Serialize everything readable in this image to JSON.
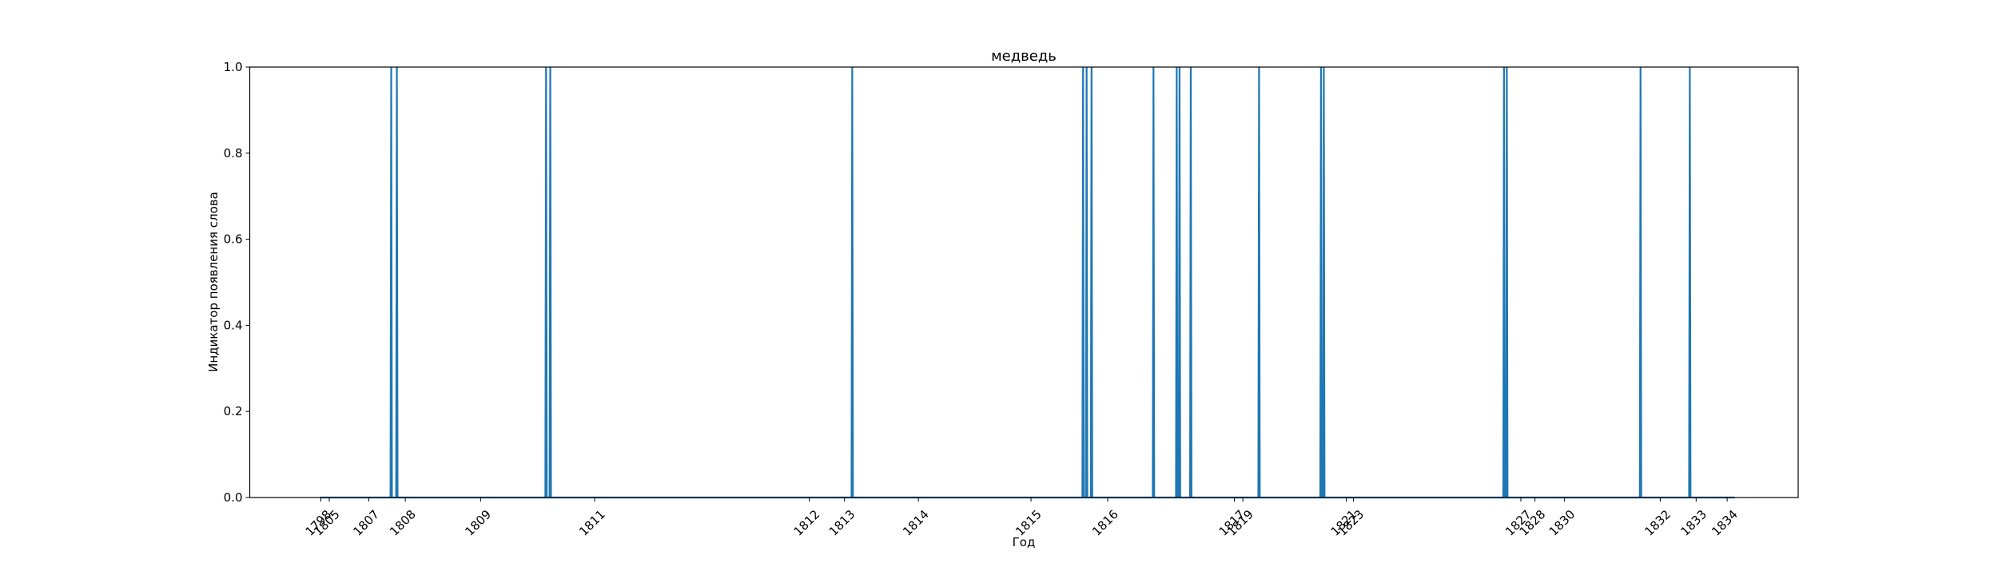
{
  "chart_data": {
    "type": "line",
    "title": "медведь",
    "xlabel": "Год",
    "ylabel": "Индикатор появления слова",
    "ylim": [
      0,
      1
    ],
    "xlim": [
      -0.5,
      21.5
    ],
    "y_ticks": [
      {
        "value": 0.0,
        "label": "0.0"
      },
      {
        "value": 0.2,
        "label": "0.2"
      },
      {
        "value": 0.4,
        "label": "0.4"
      },
      {
        "value": 0.6,
        "label": "0.6"
      },
      {
        "value": 0.8,
        "label": "0.8"
      },
      {
        "value": 1.0,
        "label": "1.0"
      }
    ],
    "x_ticks": [
      {
        "x": 0.51,
        "label": "1798"
      },
      {
        "x": 0.63,
        "label": "1805"
      },
      {
        "x": 1.19,
        "label": "1807"
      },
      {
        "x": 1.71,
        "label": "1808"
      },
      {
        "x": 2.78,
        "label": "1809"
      },
      {
        "x": 4.4,
        "label": "1811"
      },
      {
        "x": 7.45,
        "label": "1812"
      },
      {
        "x": 7.95,
        "label": "1813"
      },
      {
        "x": 9.0,
        "label": "1814"
      },
      {
        "x": 10.6,
        "label": "1815"
      },
      {
        "x": 11.69,
        "label": "1816"
      },
      {
        "x": 13.49,
        "label": "1817"
      },
      {
        "x": 13.61,
        "label": "1819"
      },
      {
        "x": 15.08,
        "label": "1821"
      },
      {
        "x": 15.18,
        "label": "1823"
      },
      {
        "x": 17.56,
        "label": "1827"
      },
      {
        "x": 17.76,
        "label": "1828"
      },
      {
        "x": 18.18,
        "label": "1830"
      },
      {
        "x": 19.54,
        "label": "1832"
      },
      {
        "x": 20.05,
        "label": "1833"
      },
      {
        "x": 20.49,
        "label": "1834"
      }
    ],
    "series": [
      {
        "color": "#1f77b4",
        "x": [
          0.5,
          0.62,
          1.5,
          1.51,
          1.52,
          1.58,
          1.59,
          1.6,
          3.7,
          3.71,
          3.72,
          3.76,
          3.77,
          3.78,
          8.05,
          8.06,
          8.07,
          11.33,
          11.34,
          11.35,
          11.38,
          11.39,
          11.4,
          11.45,
          11.46,
          11.47,
          12.33,
          12.34,
          12.35,
          12.66,
          12.67,
          12.68,
          12.7,
          12.71,
          12.72,
          12.86,
          12.87,
          12.88,
          13.83,
          13.84,
          13.85,
          14.71,
          14.72,
          14.73,
          14.75,
          14.76,
          14.77,
          17.31,
          17.32,
          17.33,
          17.35,
          17.36,
          17.37,
          19.25,
          19.26,
          19.27,
          19.95,
          19.96,
          19.97,
          20.6
        ],
        "y": [
          0,
          0,
          0,
          1,
          0,
          0,
          1,
          0,
          0,
          1,
          0,
          0,
          1,
          0,
          0,
          1,
          0,
          0,
          1,
          0,
          0,
          1,
          0,
          0,
          1,
          0,
          0,
          1,
          0,
          0,
          1,
          0,
          0,
          1,
          0,
          0,
          1,
          0,
          0,
          1,
          0,
          0,
          1,
          0,
          0,
          1,
          0,
          0,
          1,
          0,
          0,
          1,
          0,
          0,
          1,
          0,
          0,
          1,
          0,
          0
        ]
      }
    ]
  }
}
